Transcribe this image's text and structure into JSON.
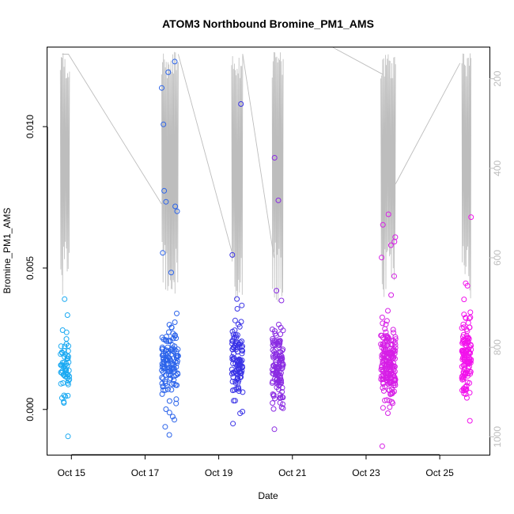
{
  "chart_data": {
    "type": "scatter",
    "title": "ATOM3 Northbound Bromine_PM1_AMS",
    "xlabel": "Date",
    "ylabel": "Bromine_PM1_AMS",
    "x_ticks": [
      "Oct 15",
      "Oct 17",
      "Oct 19",
      "Oct 21",
      "Oct 23",
      "Oct 25"
    ],
    "x_tick_values": [
      15,
      17,
      19,
      21,
      23,
      25
    ],
    "xlim": [
      14.35,
      26.35
    ],
    "y_ticks": [
      "0.000",
      "0.005",
      "0.010"
    ],
    "y_tick_values": [
      0.0,
      0.005,
      0.01
    ],
    "ylim": [
      -0.0016,
      0.0128
    ],
    "y2_ticks": [
      "200",
      "400",
      "600",
      "800",
      "1000"
    ],
    "y2_tick_values": [
      200,
      400,
      600,
      800,
      1000
    ],
    "y2lim": [
      130,
      1040
    ],
    "y2_reversed": true,
    "track_color": "#bdbdbd",
    "flights": [
      {
        "start": 14.7,
        "end": 14.95,
        "color": "#19a9f2",
        "center": 0.0014,
        "spread": 0.0011,
        "n": 60,
        "min": -0.00095,
        "max": 0.0039
      },
      {
        "start": 17.45,
        "end": 17.9,
        "color": "#2b63ea",
        "center": 0.0016,
        "spread": 0.0012,
        "n": 140,
        "min": -0.0009,
        "max": 0.0123
      },
      {
        "start": 19.35,
        "end": 19.65,
        "color": "#3a33e6",
        "center": 0.0018,
        "spread": 0.0014,
        "n": 110,
        "min": -0.0005,
        "max": 0.0108
      },
      {
        "start": 20.45,
        "end": 20.75,
        "color": "#8a2be2",
        "center": 0.0015,
        "spread": 0.0013,
        "n": 130,
        "min": -0.0007,
        "max": 0.0089
      },
      {
        "start": 23.4,
        "end": 23.8,
        "color": "#d61fe6",
        "center": 0.0016,
        "spread": 0.0012,
        "n": 200,
        "min": -0.0013,
        "max": 0.0069
      },
      {
        "start": 25.6,
        "end": 25.85,
        "color": "#f213ec",
        "center": 0.0018,
        "spread": 0.0012,
        "n": 130,
        "min": -0.0004,
        "max": 0.0068
      }
    ],
    "track_segments": [
      {
        "x": [
          14.75,
          14.92,
          17.45
        ],
        "y2": [
          145,
          145,
          480
        ]
      },
      {
        "x": [
          17.9,
          19.4
        ],
        "y2": [
          145,
          600
        ]
      },
      {
        "x": [
          19.65,
          20.5
        ],
        "y2": [
          145,
          600
        ]
      },
      {
        "x": [
          22.1,
          23.45
        ],
        "y2": [
          130,
          190
        ]
      },
      {
        "x": [
          23.8,
          25.55
        ],
        "y2": [
          435,
          165
        ]
      }
    ],
    "grid": false,
    "legend": "none"
  }
}
